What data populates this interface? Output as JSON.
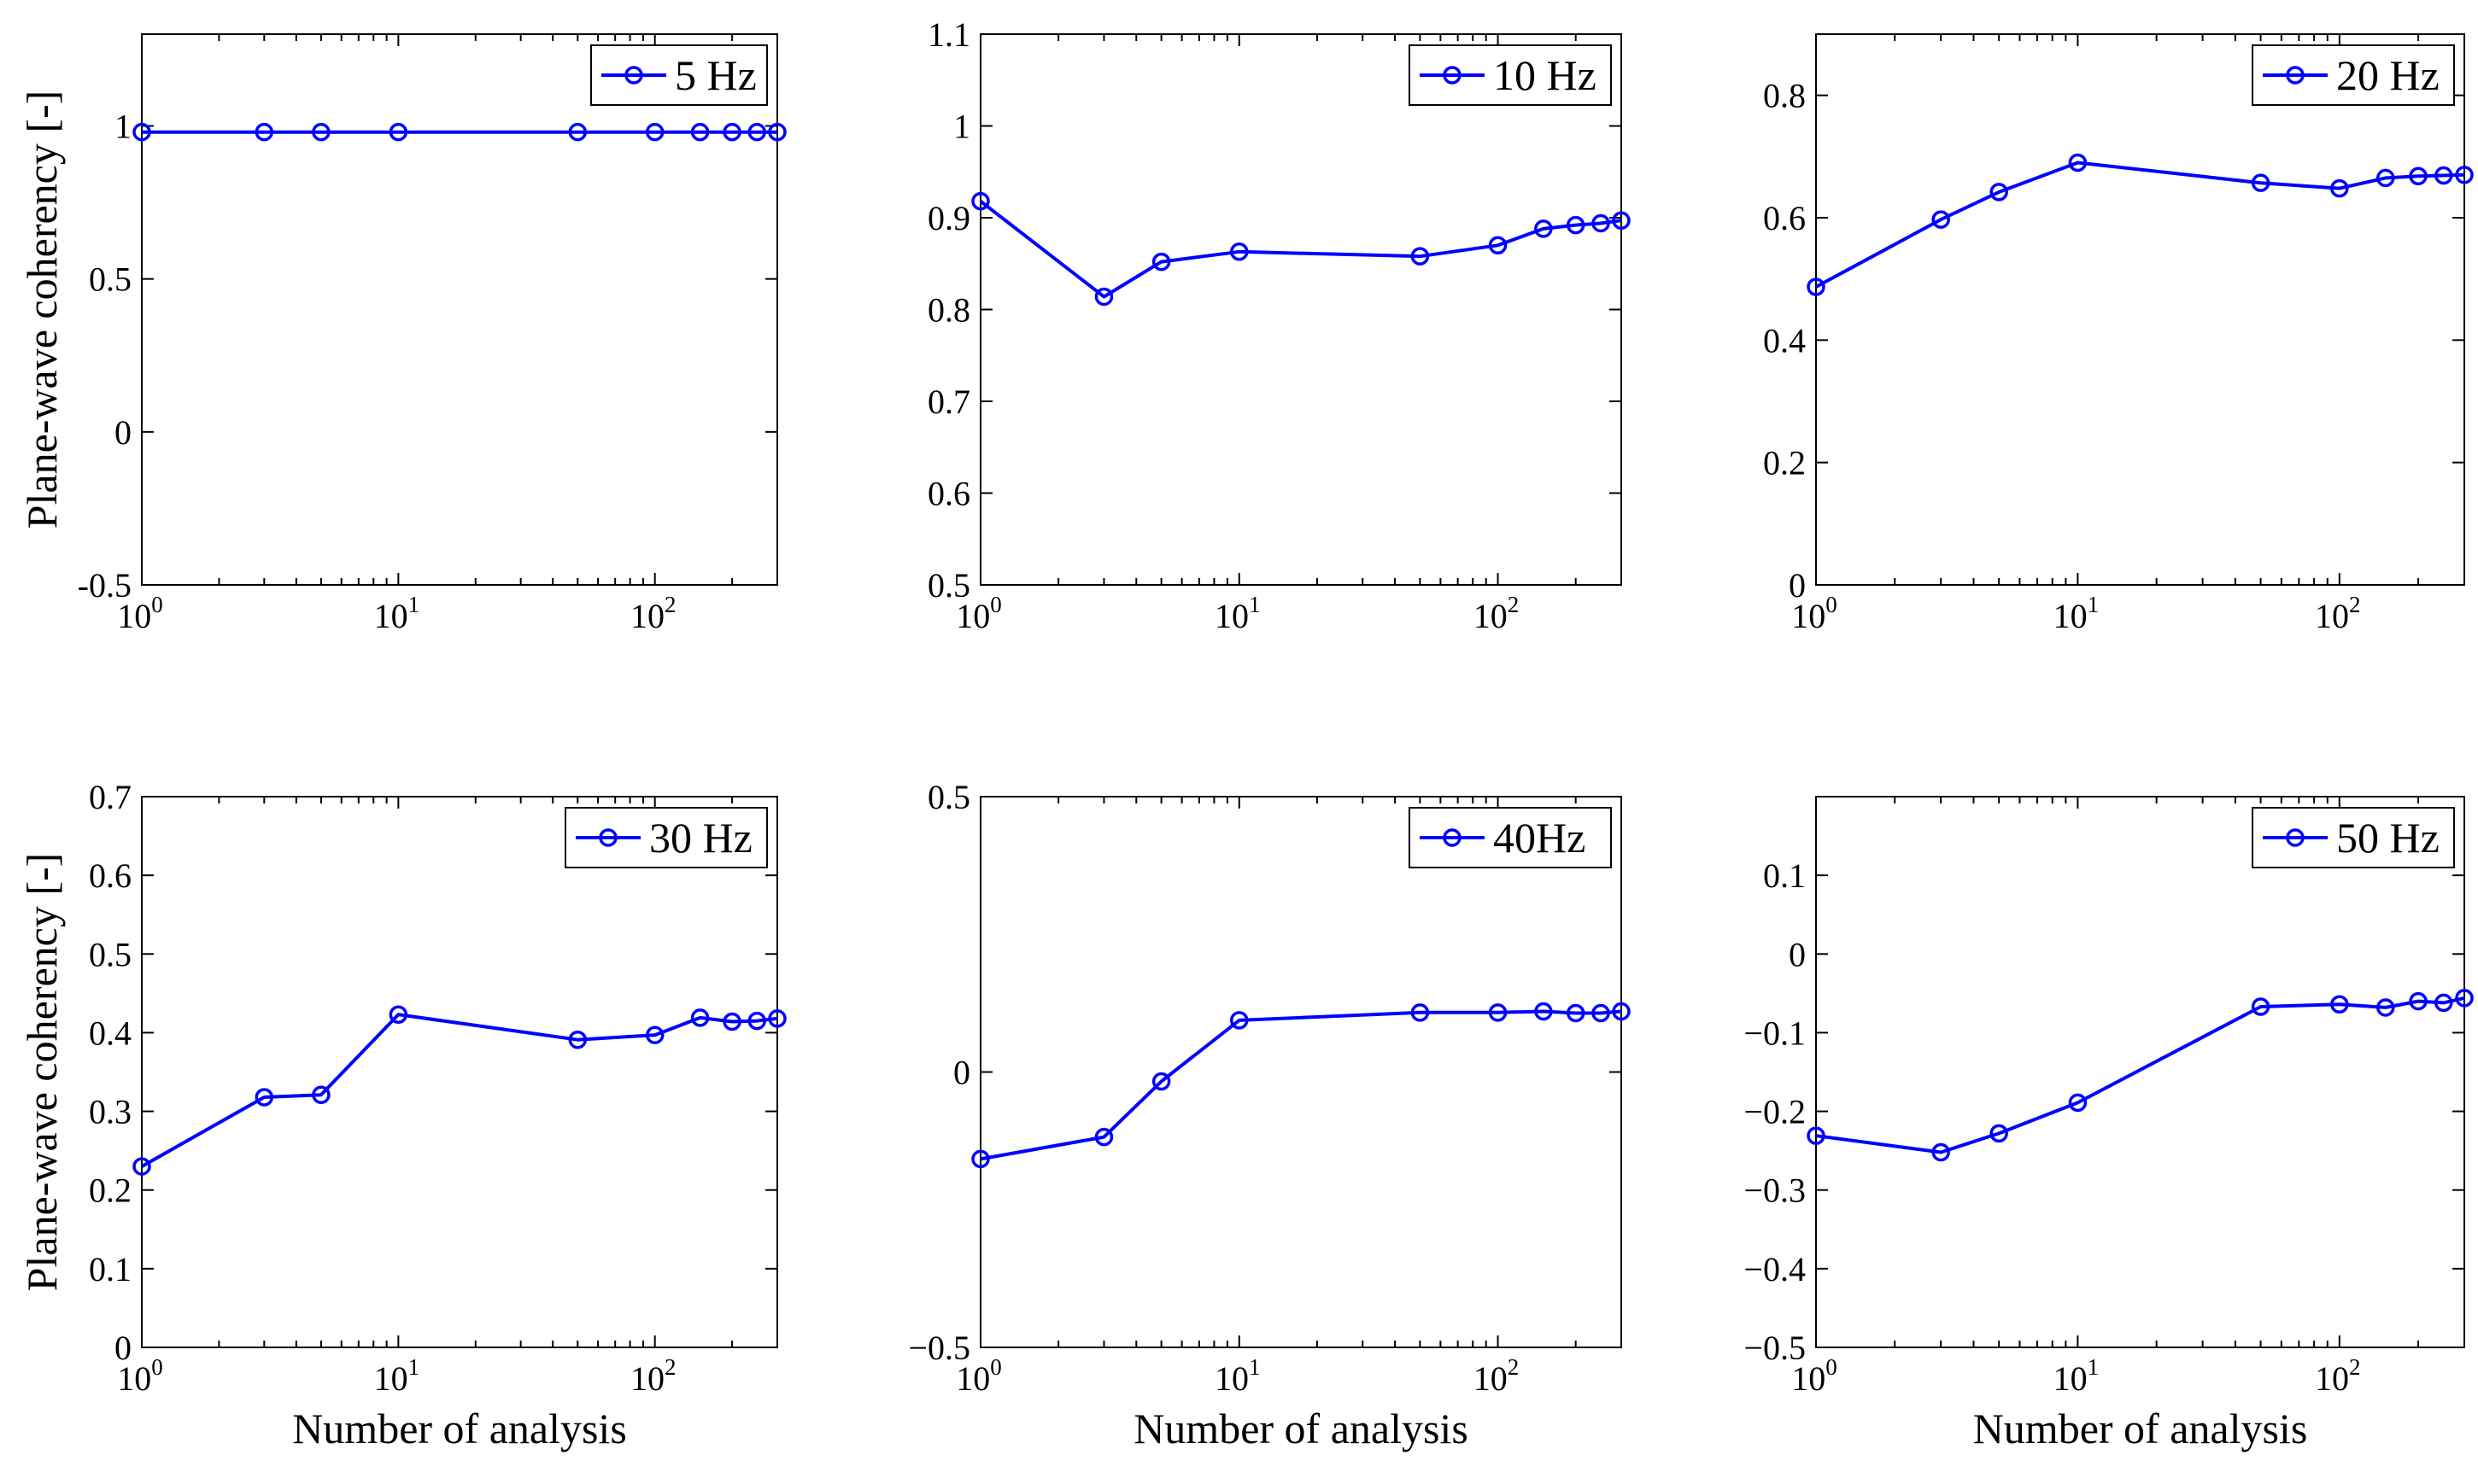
{
  "chart_data": [
    {
      "type": "line",
      "title": "",
      "xlabel": "",
      "ylabel": "Plane-wave coherency [-]",
      "xscale": "log",
      "xlim": [
        1,
        300
      ],
      "ylim": [
        -0.5,
        1.3
      ],
      "yticks": [
        -0.5,
        0,
        0.5,
        1
      ],
      "ytick_labels": [
        "-0.5",
        "0",
        "0.5",
        "1"
      ],
      "xticks": [
        1,
        10,
        100
      ],
      "xtick_labels": [
        {
          "base": "10",
          "exp": "0"
        },
        {
          "base": "10",
          "exp": "1"
        },
        {
          "base": "10",
          "exp": "2"
        }
      ],
      "legend_position": "top-right",
      "color": "#0000ff",
      "series": [
        {
          "name": "5 Hz",
          "x": [
            1,
            3,
            5,
            10,
            50,
            100,
            150,
            200,
            250,
            300
          ],
          "y": [
            0.98,
            0.98,
            0.98,
            0.98,
            0.98,
            0.98,
            0.98,
            0.98,
            0.98,
            0.98
          ]
        }
      ]
    },
    {
      "type": "line",
      "title": "",
      "xlabel": "",
      "ylabel": "",
      "xscale": "log",
      "xlim": [
        1,
        300
      ],
      "ylim": [
        0.5,
        1.1
      ],
      "yticks": [
        0.5,
        0.6,
        0.7,
        0.8,
        0.9,
        1.0,
        1.1
      ],
      "ytick_labels": [
        "0.5",
        "0.6",
        "0.7",
        "0.8",
        "0.9",
        "1",
        "1.1"
      ],
      "xticks": [
        1,
        10,
        100
      ],
      "xtick_labels": [
        {
          "base": "10",
          "exp": "0"
        },
        {
          "base": "10",
          "exp": "1"
        },
        {
          "base": "10",
          "exp": "2"
        }
      ],
      "legend_position": "top-right",
      "color": "#0000ff",
      "series": [
        {
          "name": "10 Hz",
          "x": [
            1,
            3,
            5,
            10,
            50,
            100,
            150,
            200,
            250,
            300
          ],
          "y": [
            0.918,
            0.814,
            0.852,
            0.863,
            0.858,
            0.87,
            0.888,
            0.892,
            0.894,
            0.897
          ]
        }
      ]
    },
    {
      "type": "line",
      "title": "",
      "xlabel": "",
      "ylabel": "",
      "xscale": "log",
      "xlim": [
        1,
        300
      ],
      "ylim": [
        0,
        0.9
      ],
      "yticks": [
        0,
        0.2,
        0.4,
        0.6,
        0.8
      ],
      "ytick_labels": [
        "0",
        "0.2",
        "0.4",
        "0.6",
        "0.8"
      ],
      "xticks": [
        1,
        10,
        100
      ],
      "xtick_labels": [
        {
          "base": "10",
          "exp": "0"
        },
        {
          "base": "10",
          "exp": "1"
        },
        {
          "base": "10",
          "exp": "2"
        }
      ],
      "legend_position": "top-right",
      "color": "#0000ff",
      "series": [
        {
          "name": "20 Hz",
          "x": [
            1,
            3,
            5,
            10,
            50,
            100,
            150,
            200,
            250,
            300
          ],
          "y": [
            0.487,
            0.597,
            0.642,
            0.69,
            0.657,
            0.648,
            0.665,
            0.668,
            0.669,
            0.67
          ]
        }
      ]
    },
    {
      "type": "line",
      "title": "",
      "xlabel": "Number of analysis",
      "ylabel": "Plane-wave coherency [-]",
      "xscale": "log",
      "xlim": [
        1,
        300
      ],
      "ylim": [
        0,
        0.7
      ],
      "yticks": [
        0,
        0.1,
        0.2,
        0.3,
        0.4,
        0.5,
        0.6,
        0.7
      ],
      "ytick_labels": [
        "0",
        "0.1",
        "0.2",
        "0.3",
        "0.4",
        "0.5",
        "0.6",
        "0.7"
      ],
      "xticks": [
        1,
        10,
        100
      ],
      "xtick_labels": [
        {
          "base": "10",
          "exp": "0"
        },
        {
          "base": "10",
          "exp": "1"
        },
        {
          "base": "10",
          "exp": "2"
        }
      ],
      "legend_position": "top-right",
      "color": "#0000ff",
      "series": [
        {
          "name": "30 Hz",
          "x": [
            1,
            3,
            5,
            10,
            50,
            100,
            150,
            200,
            250,
            300
          ],
          "y": [
            0.23,
            0.318,
            0.321,
            0.423,
            0.391,
            0.397,
            0.419,
            0.414,
            0.415,
            0.418
          ]
        }
      ]
    },
    {
      "type": "line",
      "title": "",
      "xlabel": "Number of analysis",
      "ylabel": "",
      "xscale": "log",
      "xlim": [
        1,
        300
      ],
      "ylim": [
        -0.5,
        0.5
      ],
      "yticks": [
        -0.5,
        0,
        0.5
      ],
      "ytick_labels": [
        "−0.5",
        "0",
        "0.5"
      ],
      "xticks": [
        1,
        10,
        100
      ],
      "xtick_labels": [
        {
          "base": "10",
          "exp": "0"
        },
        {
          "base": "10",
          "exp": "1"
        },
        {
          "base": "10",
          "exp": "2"
        }
      ],
      "legend_position": "top-right",
      "color": "#0000ff",
      "series": [
        {
          "name": "40Hz",
          "x": [
            1,
            3,
            5,
            10,
            50,
            100,
            150,
            200,
            250,
            300
          ],
          "y": [
            -0.158,
            -0.118,
            -0.017,
            0.094,
            0.108,
            0.108,
            0.11,
            0.107,
            0.107,
            0.11
          ]
        }
      ]
    },
    {
      "type": "line",
      "title": "",
      "xlabel": "Number of analysis",
      "ylabel": "",
      "xscale": "log",
      "xlim": [
        1,
        300
      ],
      "ylim": [
        -0.5,
        0.2
      ],
      "yticks": [
        -0.5,
        -0.4,
        -0.3,
        -0.2,
        -0.1,
        0,
        0.1
      ],
      "ytick_labels": [
        "−0.5",
        "−0.4",
        "−0.3",
        "−0.2",
        "−0.1",
        "0",
        "0.1"
      ],
      "xticks": [
        1,
        10,
        100
      ],
      "xtick_labels": [
        {
          "base": "10",
          "exp": "0"
        },
        {
          "base": "10",
          "exp": "1"
        },
        {
          "base": "10",
          "exp": "2"
        }
      ],
      "legend_position": "top-right",
      "color": "#0000ff",
      "series": [
        {
          "name": "50 Hz",
          "x": [
            1,
            3,
            5,
            10,
            50,
            100,
            150,
            200,
            250,
            300
          ],
          "y": [
            -0.231,
            -0.252,
            -0.228,
            -0.189,
            -0.067,
            -0.064,
            -0.068,
            -0.06,
            -0.062,
            -0.056
          ]
        }
      ]
    }
  ]
}
